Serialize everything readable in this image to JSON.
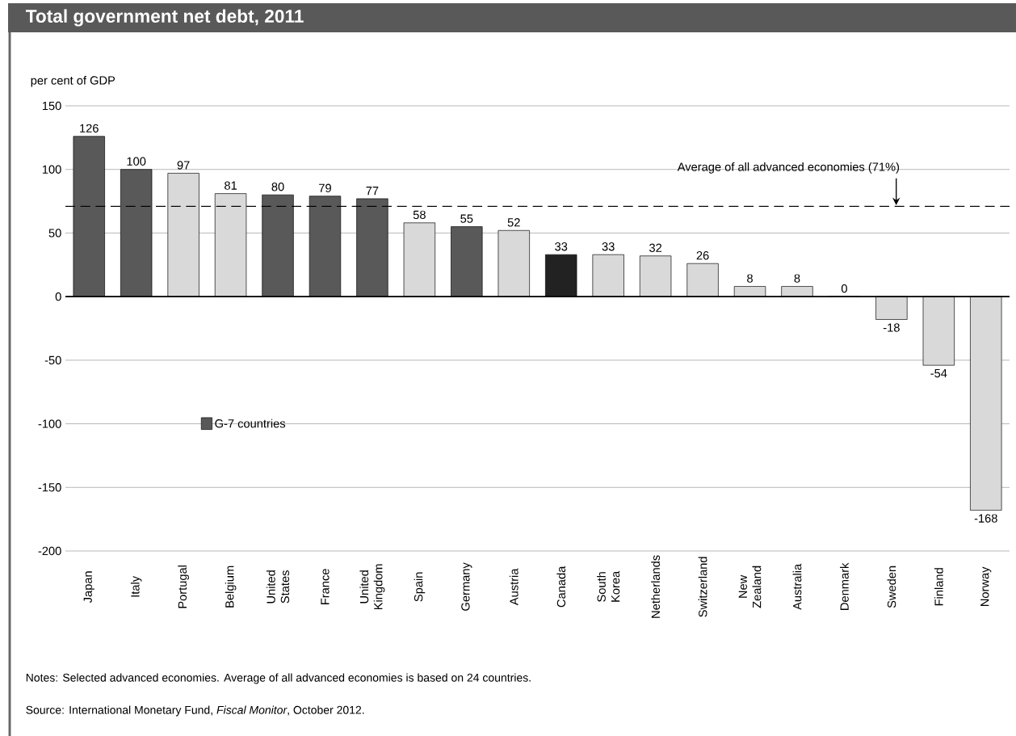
{
  "chart_data": {
    "type": "bar",
    "title": "Total government net debt, 2011",
    "ylabel": "per cent of GDP",
    "categories": [
      "Japan",
      "Italy",
      "Portugal",
      "Belgium",
      "United States",
      "France",
      "United Kingdom",
      "Spain",
      "Germany",
      "Austria",
      "Canada",
      "South Korea",
      "Netherlands",
      "Switzerland",
      "New Zealand",
      "Australia",
      "Denmark",
      "Sweden",
      "Finland",
      "Norway"
    ],
    "series": [
      {
        "name": "G-7 countries",
        "color": "#595959",
        "values": [
          126,
          100,
          null,
          null,
          80,
          79,
          77,
          null,
          55,
          null,
          null,
          null,
          null,
          null,
          null,
          null,
          null,
          null,
          null,
          null
        ]
      },
      {
        "colors": [
          null,
          null,
          "#d9d9d9",
          "#d9d9d9",
          null,
          null,
          null,
          "#d9d9d9",
          null,
          "#d9d9d9",
          "#222222",
          "#d9d9d9",
          "#d9d9d9",
          "#d9d9d9",
          "#d9d9d9",
          "#d9d9d9",
          "#d9d9d9",
          "#d9d9d9",
          "#d9d9d9",
          "#d9d9d9"
        ],
        "values": [
          null,
          null,
          97,
          81,
          null,
          null,
          null,
          58,
          null,
          52,
          33,
          33,
          32,
          26,
          8,
          8,
          0,
          -18,
          -54,
          -168
        ]
      }
    ],
    "ylim": [
      -200,
      150
    ],
    "yticks": [
      -200,
      -150,
      -100,
      -50,
      0,
      50,
      100,
      150
    ],
    "grid": "y",
    "legend": "left",
    "data_labels": true,
    "ref_lines": [
      {
        "axis": "y",
        "value": 71,
        "label": "Average of all advanced economies (71%)",
        "line_style": "dashed",
        "color": "#000000"
      }
    ],
    "annotations": [
      "Notes: Selected advanced economies. Average of all advanced economies is based on 24 countries.",
      "Source: International Monetary Fund, *Fiscal Monitor*, October 2012."
    ]
  }
}
